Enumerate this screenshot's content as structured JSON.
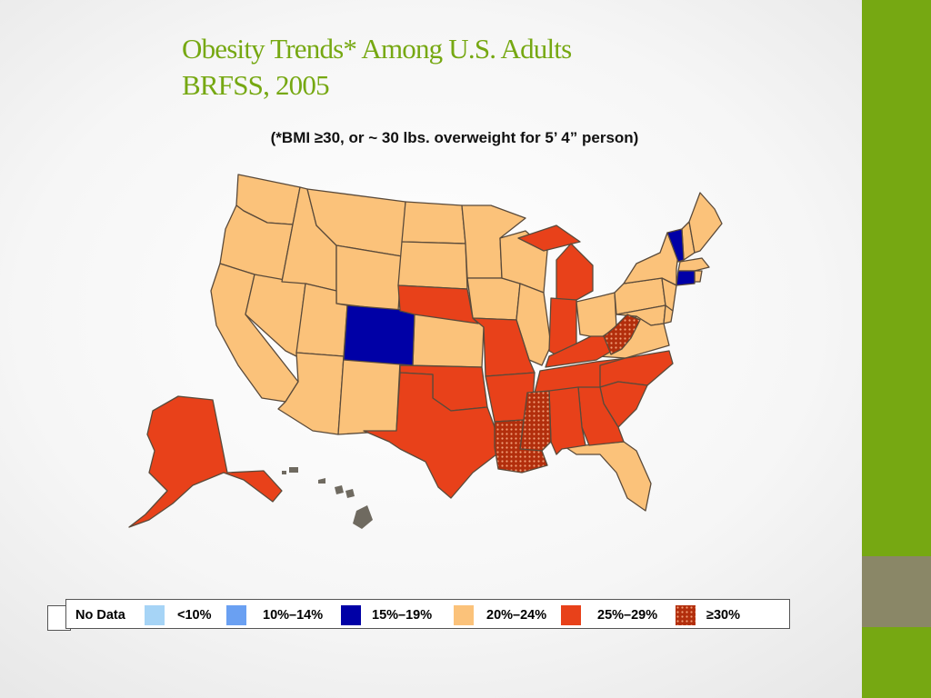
{
  "slide": {
    "title_line1": "Obesity Trends* Among U.S. Adults",
    "title_line2": "BRFSS, 2005",
    "subtitle": "(*BMI ≥30, or ~ 30 lbs. overweight for 5’ 4” person)"
  },
  "legend": {
    "items": [
      {
        "label": "No Data",
        "color": "#ffffff"
      },
      {
        "label": "<10%",
        "color": "#a6d4f6"
      },
      {
        "label": "10%–14%",
        "color": "#6aa0f2"
      },
      {
        "label": "15%–19%",
        "color": "#0000a6"
      },
      {
        "label": "20%–24%",
        "color": "#fbc27a"
      },
      {
        "label": "25%–29%",
        "color": "#e8411a"
      },
      {
        "label": "≥30%",
        "color": "#b22e0c"
      }
    ]
  },
  "states": {
    "15-19": [
      "CO",
      "VT",
      "CT"
    ],
    "20-24": [
      "WA",
      "OR",
      "CA",
      "NV",
      "ID",
      "MT",
      "WY",
      "UT",
      "AZ",
      "NM",
      "ND",
      "SD",
      "KS",
      "MN",
      "IA",
      "WI",
      "IL",
      "OH",
      "PA",
      "NY",
      "ME",
      "NH",
      "MA",
      "RI",
      "NJ",
      "DE",
      "MD",
      "VA",
      "FL"
    ],
    "25-29": [
      "AK",
      "TX",
      "OK",
      "NE",
      "MO",
      "AR",
      "AL",
      "GA",
      "SC",
      "NC",
      "TN",
      "KY",
      "IN",
      "MI"
    ],
    "30+": [
      "WV",
      "MS",
      "LA"
    ],
    "no_data": [
      "HI"
    ]
  },
  "colors": {
    "accent_green": "#76a812",
    "accent_gray": "#8a8767",
    "hawaii": "#6f6a60"
  }
}
